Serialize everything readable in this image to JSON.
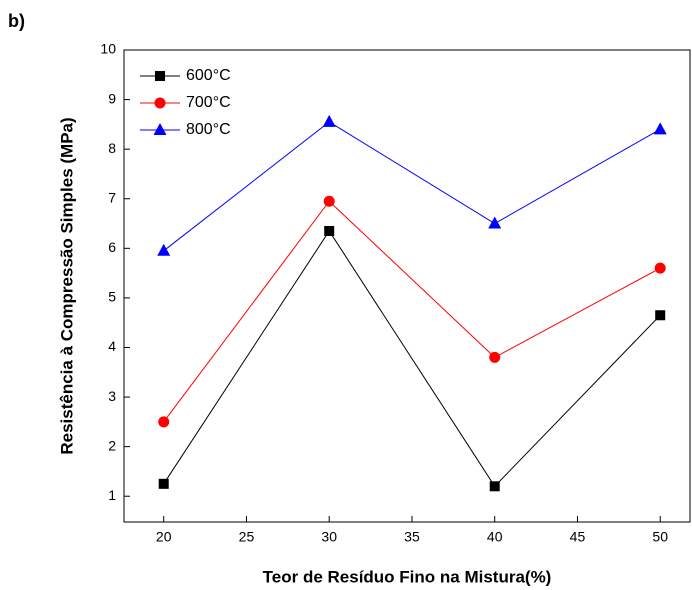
{
  "chart_data": {
    "type": "line",
    "annotation": "b)",
    "x_label": "Teor de Resíduo Fino na Mistura(%)",
    "y_label": "Resistência à Compressão Simples (MPa)",
    "x": [
      20,
      30,
      40,
      50
    ],
    "series": [
      {
        "name": "600°C",
        "color": "#000000",
        "marker": "square",
        "values": [
          1.25,
          6.35,
          1.2,
          4.65
        ]
      },
      {
        "name": "700°C",
        "color": "#ff0000",
        "marker": "circle",
        "values": [
          2.5,
          6.95,
          3.8,
          5.6
        ]
      },
      {
        "name": "800°C",
        "color": "#0000ff",
        "marker": "triangle",
        "values": [
          5.95,
          8.55,
          6.5,
          8.4
        ]
      }
    ],
    "xlim": [
      17.6,
      51.8
    ],
    "xticks": [
      20,
      25,
      30,
      35,
      40,
      45,
      50
    ],
    "ylim": [
      0.48,
      10
    ],
    "yticks": [
      1,
      2,
      3,
      4,
      5,
      6,
      7,
      8,
      9,
      10
    ],
    "legend": "upper left"
  }
}
